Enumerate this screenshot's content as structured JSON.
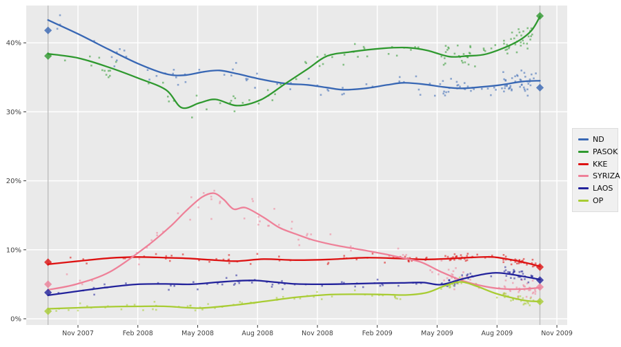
{
  "meta": {
    "page_background": "#ffffff",
    "plot_background": "#eaeaea",
    "grid_color": "#ffffff",
    "election_line_color": "#bdbdbd",
    "axis_label_color": "#3f3f3f",
    "tick_mark_color": "#333333"
  },
  "legend": {
    "position": "right",
    "entries": [
      "ND",
      "PASOK",
      "KKE",
      "SYRIZA",
      "LAOS",
      "OP"
    ]
  },
  "chart_data": {
    "type": "scatter",
    "title": "",
    "x_axis": {
      "unit": "months since Sep 2007",
      "tick_labels": [
        "Nov 2007",
        "Feb 2008",
        "May 2008",
        "Aug 2008",
        "Nov 2008",
        "Feb 2009",
        "May 2009",
        "Aug 2009",
        "Nov 2009"
      ],
      "tick_months": [
        2,
        5,
        8,
        11,
        14,
        17,
        20,
        23,
        26
      ],
      "range_months": [
        -0.6,
        26.5
      ]
    },
    "y_axis": {
      "tick_labels": [
        "0%",
        "10%",
        "20%",
        "30%",
        "40%"
      ],
      "ticks": [
        0,
        10,
        20,
        30,
        40
      ],
      "range": [
        -0.9,
        45.4
      ],
      "grid": true
    },
    "election_markers": [
      {
        "month": 0.5,
        "results": {
          "ND": 41.8,
          "PASOK": 38.1,
          "KKE": 8.2,
          "SYRIZA": 5.0,
          "LAOS": 3.8,
          "OP": 1.1
        }
      },
      {
        "month": 25.15,
        "results": {
          "ND": 33.5,
          "PASOK": 43.9,
          "KKE": 7.5,
          "SYRIZA": 4.6,
          "LAOS": 5.6,
          "OP": 2.5
        }
      }
    ],
    "series": [
      {
        "name": "ND",
        "color": "#3867b4",
        "trend": [
          [
            0.5,
            43.3
          ],
          [
            2,
            41.3
          ],
          [
            3.5,
            39.1
          ],
          [
            5,
            37.0
          ],
          [
            6.4,
            35.5
          ],
          [
            7.3,
            35.3
          ],
          [
            8.3,
            35.8
          ],
          [
            9.1,
            36.0
          ],
          [
            10,
            35.5
          ],
          [
            11.2,
            34.7
          ],
          [
            12.4,
            34.1
          ],
          [
            13.5,
            33.9
          ],
          [
            14.5,
            33.5
          ],
          [
            15.3,
            33.2
          ],
          [
            16.4,
            33.4
          ],
          [
            17.5,
            33.9
          ],
          [
            18.3,
            34.2
          ],
          [
            19.3,
            34.0
          ],
          [
            20.3,
            33.6
          ],
          [
            21.2,
            33.4
          ],
          [
            22.2,
            33.6
          ],
          [
            23.2,
            33.9
          ],
          [
            24.3,
            34.4
          ],
          [
            25.15,
            34.5
          ]
        ],
        "scatter": {
          "count": 120,
          "amp": 1.4,
          "seed": 11
        }
      },
      {
        "name": "PASOK",
        "color": "#2f992f",
        "trend": [
          [
            0.5,
            38.4
          ],
          [
            2,
            37.8
          ],
          [
            3.5,
            36.5
          ],
          [
            5,
            34.9
          ],
          [
            6.4,
            33.2
          ],
          [
            7.2,
            30.6
          ],
          [
            8.1,
            31.3
          ],
          [
            8.9,
            31.8
          ],
          [
            10,
            30.9
          ],
          [
            11.2,
            31.8
          ],
          [
            12.4,
            34.1
          ],
          [
            13.5,
            36.2
          ],
          [
            14.5,
            38.1
          ],
          [
            15.7,
            38.7
          ],
          [
            17.3,
            39.2
          ],
          [
            18.5,
            39.3
          ],
          [
            19.5,
            38.9
          ],
          [
            20.6,
            38.0
          ],
          [
            21.5,
            38.1
          ],
          [
            22.5,
            38.4
          ],
          [
            23.9,
            40.0
          ],
          [
            24.7,
            41.7
          ],
          [
            25.15,
            43.8
          ]
        ],
        "scatter": {
          "count": 120,
          "amp": 1.4,
          "seed": 22
        }
      },
      {
        "name": "KKE",
        "color": "#dd1111",
        "trend": [
          [
            0.5,
            7.9
          ],
          [
            2,
            8.35
          ],
          [
            3.6,
            8.8
          ],
          [
            5,
            8.95
          ],
          [
            6.4,
            8.85
          ],
          [
            7.5,
            8.75
          ],
          [
            8.6,
            8.55
          ],
          [
            9.9,
            8.35
          ],
          [
            11.3,
            8.65
          ],
          [
            12.9,
            8.5
          ],
          [
            14.6,
            8.6
          ],
          [
            16.4,
            8.85
          ],
          [
            18,
            8.75
          ],
          [
            19.3,
            8.6
          ],
          [
            20.5,
            8.7
          ],
          [
            21.8,
            8.9
          ],
          [
            22.8,
            8.95
          ],
          [
            23.8,
            8.5
          ],
          [
            24.6,
            8.0
          ],
          [
            25.15,
            7.6
          ]
        ],
        "scatter": {
          "count": 105,
          "amp": 0.55,
          "seed": 33
        }
      },
      {
        "name": "SYRIZA",
        "color": "#ee8098",
        "trend": [
          [
            0.5,
            4.2
          ],
          [
            1.9,
            5.0
          ],
          [
            3.6,
            6.8
          ],
          [
            5.4,
            10.4
          ],
          [
            6.6,
            13.3
          ],
          [
            7.4,
            15.6
          ],
          [
            8.2,
            17.6
          ],
          [
            8.8,
            18.2
          ],
          [
            9.3,
            17.3
          ],
          [
            9.8,
            15.9
          ],
          [
            10.4,
            16.1
          ],
          [
            11.3,
            14.7
          ],
          [
            12.1,
            13.2
          ],
          [
            13,
            12.2
          ],
          [
            13.8,
            11.4
          ],
          [
            15,
            10.6
          ],
          [
            16.4,
            9.9
          ],
          [
            17.5,
            9.3
          ],
          [
            18.3,
            8.8
          ],
          [
            19.2,
            8.2
          ],
          [
            20.2,
            6.8
          ],
          [
            21.2,
            5.6
          ],
          [
            22.2,
            4.8
          ],
          [
            23.2,
            4.35
          ],
          [
            24.2,
            4.3
          ],
          [
            25.15,
            4.5
          ]
        ],
        "scatter": {
          "count": 105,
          "amp": 1.2,
          "wide_when_above": 12,
          "seed": 44
        }
      },
      {
        "name": "LAOS",
        "color": "#22229b",
        "trend": [
          [
            0.5,
            3.4
          ],
          [
            2,
            4.0
          ],
          [
            3.6,
            4.6
          ],
          [
            5,
            5.0
          ],
          [
            6.4,
            5.05
          ],
          [
            7.7,
            5.0
          ],
          [
            9,
            5.3
          ],
          [
            10,
            5.5
          ],
          [
            10.9,
            5.55
          ],
          [
            11.9,
            5.3
          ],
          [
            12.9,
            5.05
          ],
          [
            14.1,
            5.0
          ],
          [
            15.5,
            5.05
          ],
          [
            16.9,
            5.15
          ],
          [
            18.2,
            5.2
          ],
          [
            19.3,
            5.25
          ],
          [
            20.2,
            4.95
          ],
          [
            21.3,
            5.8
          ],
          [
            22.4,
            6.5
          ],
          [
            23.1,
            6.65
          ],
          [
            24,
            6.3
          ],
          [
            25.15,
            5.7
          ]
        ],
        "scatter": {
          "count": 105,
          "amp": 0.6,
          "seed": 55
        }
      },
      {
        "name": "OP",
        "color": "#a8cc33",
        "trend": [
          [
            0.5,
            1.45
          ],
          [
            2,
            1.6
          ],
          [
            3.6,
            1.75
          ],
          [
            5,
            1.8
          ],
          [
            6.4,
            1.8
          ],
          [
            8.1,
            1.55
          ],
          [
            9.9,
            2.0
          ],
          [
            11.3,
            2.5
          ],
          [
            12.9,
            3.1
          ],
          [
            14.6,
            3.5
          ],
          [
            16.4,
            3.55
          ],
          [
            17.5,
            3.5
          ],
          [
            18.5,
            3.45
          ],
          [
            19.5,
            3.8
          ],
          [
            20.4,
            4.8
          ],
          [
            21.2,
            5.35
          ],
          [
            22,
            4.7
          ],
          [
            22.9,
            3.7
          ],
          [
            23.8,
            3.0
          ],
          [
            24.5,
            2.6
          ],
          [
            25.15,
            2.5
          ]
        ],
        "scatter": {
          "count": 95,
          "amp": 0.5,
          "seed": 66
        }
      }
    ]
  }
}
